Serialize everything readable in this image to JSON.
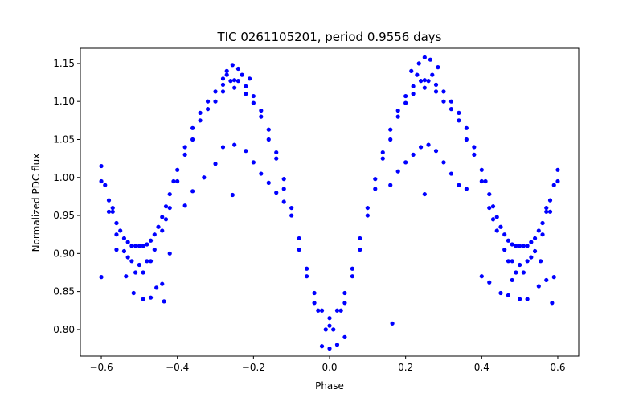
{
  "chart_data": {
    "type": "scatter",
    "title": "TIC 0261105201, period 0.9556 days",
    "xlabel": "Phase",
    "ylabel": "Normalized PDC flux",
    "xlim": [
      -0.655,
      0.655
    ],
    "ylim": [
      0.765,
      1.17
    ],
    "xticks": [
      "−0.6",
      "−0.4",
      "−0.2",
      "0.0",
      "0.2",
      "0.4",
      "0.6"
    ],
    "yticks": [
      "0.80",
      "0.85",
      "0.90",
      "0.95",
      "1.00",
      "1.05",
      "1.10",
      "1.15"
    ],
    "grid": false,
    "marker_color": "#0000ff",
    "series": [
      {
        "name": "",
        "points": [
          [
            -0.6,
            1.015
          ],
          [
            -0.59,
            0.99
          ],
          [
            -0.58,
            0.97
          ],
          [
            -0.57,
            0.955
          ],
          [
            -0.56,
            0.94
          ],
          [
            -0.55,
            0.93
          ],
          [
            -0.54,
            0.92
          ],
          [
            -0.53,
            0.915
          ],
          [
            -0.52,
            0.91
          ],
          [
            -0.51,
            0.91
          ],
          [
            -0.5,
            0.91
          ],
          [
            -0.49,
            0.91
          ],
          [
            -0.48,
            0.912
          ],
          [
            -0.47,
            0.917
          ],
          [
            -0.46,
            0.925
          ],
          [
            -0.45,
            0.935
          ],
          [
            -0.44,
            0.948
          ],
          [
            -0.43,
            0.962
          ],
          [
            -0.42,
            0.978
          ],
          [
            -0.41,
            0.995
          ],
          [
            -0.4,
            1.01
          ],
          [
            -0.38,
            1.04
          ],
          [
            -0.36,
            1.065
          ],
          [
            -0.34,
            1.085
          ],
          [
            -0.32,
            1.1
          ],
          [
            -0.3,
            1.113
          ],
          [
            -0.28,
            1.122
          ],
          [
            -0.26,
            1.127
          ],
          [
            -0.25,
            1.128
          ],
          [
            -0.24,
            1.127
          ],
          [
            -0.22,
            1.12
          ],
          [
            -0.2,
            1.107
          ],
          [
            -0.18,
            1.088
          ],
          [
            -0.16,
            1.063
          ],
          [
            -0.14,
            1.033
          ],
          [
            -0.12,
            0.998
          ],
          [
            -0.1,
            0.96
          ],
          [
            -0.08,
            0.92
          ],
          [
            -0.06,
            0.88
          ],
          [
            -0.04,
            0.848
          ],
          [
            -0.02,
            0.825
          ],
          [
            0.0,
            0.815
          ],
          [
            0.02,
            0.825
          ],
          [
            0.04,
            0.848
          ],
          [
            0.06,
            0.88
          ],
          [
            0.08,
            0.92
          ],
          [
            0.1,
            0.96
          ],
          [
            0.12,
            0.998
          ],
          [
            0.14,
            1.033
          ],
          [
            0.16,
            1.063
          ],
          [
            0.18,
            1.088
          ],
          [
            0.2,
            1.107
          ],
          [
            0.22,
            1.12
          ],
          [
            0.24,
            1.127
          ],
          [
            0.25,
            1.128
          ],
          [
            0.26,
            1.127
          ],
          [
            0.28,
            1.122
          ],
          [
            0.3,
            1.113
          ],
          [
            0.32,
            1.1
          ],
          [
            0.34,
            1.085
          ],
          [
            0.36,
            1.065
          ],
          [
            0.38,
            1.04
          ],
          [
            0.4,
            1.01
          ],
          [
            0.41,
            0.995
          ],
          [
            0.42,
            0.978
          ],
          [
            0.43,
            0.962
          ],
          [
            0.44,
            0.948
          ],
          [
            0.45,
            0.935
          ],
          [
            0.46,
            0.925
          ],
          [
            0.47,
            0.917
          ],
          [
            0.48,
            0.912
          ],
          [
            0.49,
            0.91
          ],
          [
            0.5,
            0.91
          ],
          [
            0.51,
            0.91
          ],
          [
            0.52,
            0.91
          ],
          [
            0.53,
            0.915
          ],
          [
            0.54,
            0.92
          ],
          [
            0.55,
            0.93
          ],
          [
            0.56,
            0.94
          ],
          [
            0.57,
            0.955
          ],
          [
            0.58,
            0.97
          ],
          [
            0.59,
            0.99
          ],
          [
            0.6,
            1.01
          ],
          [
            -0.6,
            0.995
          ],
          [
            -0.58,
            0.955
          ],
          [
            -0.56,
            0.925
          ],
          [
            -0.54,
            0.903
          ],
          [
            -0.52,
            0.89
          ],
          [
            -0.5,
            0.885
          ],
          [
            -0.48,
            0.89
          ],
          [
            -0.46,
            0.905
          ],
          [
            -0.44,
            0.93
          ],
          [
            -0.42,
            0.96
          ],
          [
            -0.4,
            0.995
          ],
          [
            -0.36,
            1.05
          ],
          [
            -0.32,
            1.09
          ],
          [
            -0.28,
            1.113
          ],
          [
            -0.25,
            1.118
          ],
          [
            -0.22,
            1.11
          ],
          [
            -0.18,
            1.08
          ],
          [
            -0.14,
            1.025
          ],
          [
            -0.1,
            0.95
          ],
          [
            -0.06,
            0.87
          ],
          [
            -0.03,
            0.825
          ],
          [
            0.0,
            0.805
          ],
          [
            0.03,
            0.825
          ],
          [
            0.06,
            0.87
          ],
          [
            0.1,
            0.95
          ],
          [
            0.14,
            1.025
          ],
          [
            0.18,
            1.08
          ],
          [
            0.22,
            1.11
          ],
          [
            0.25,
            1.118
          ],
          [
            0.28,
            1.113
          ],
          [
            0.32,
            1.09
          ],
          [
            0.36,
            1.05
          ],
          [
            0.4,
            0.995
          ],
          [
            0.42,
            0.96
          ],
          [
            0.44,
            0.93
          ],
          [
            0.46,
            0.905
          ],
          [
            0.48,
            0.89
          ],
          [
            0.5,
            0.885
          ],
          [
            0.52,
            0.89
          ],
          [
            0.54,
            0.903
          ],
          [
            0.56,
            0.925
          ],
          [
            0.58,
            0.955
          ],
          [
            0.6,
            0.995
          ],
          [
            -0.57,
            0.96
          ],
          [
            -0.53,
            0.895
          ],
          [
            -0.51,
            0.875
          ],
          [
            -0.49,
            0.875
          ],
          [
            -0.47,
            0.89
          ],
          [
            -0.43,
            0.945
          ],
          [
            -0.38,
            1.03
          ],
          [
            -0.34,
            1.075
          ],
          [
            -0.3,
            1.1
          ],
          [
            -0.27,
            1.135
          ],
          [
            -0.23,
            1.135
          ],
          [
            -0.2,
            1.098
          ],
          [
            -0.16,
            1.05
          ],
          [
            -0.12,
            0.985
          ],
          [
            -0.08,
            0.905
          ],
          [
            -0.04,
            0.835
          ],
          [
            -0.01,
            0.8
          ],
          [
            0.01,
            0.8
          ],
          [
            0.04,
            0.835
          ],
          [
            0.08,
            0.905
          ],
          [
            0.12,
            0.985
          ],
          [
            0.16,
            1.05
          ],
          [
            0.2,
            1.098
          ],
          [
            0.23,
            1.135
          ],
          [
            0.27,
            1.135
          ],
          [
            0.3,
            1.1
          ],
          [
            0.34,
            1.075
          ],
          [
            0.38,
            1.03
          ],
          [
            0.43,
            0.945
          ],
          [
            0.47,
            0.89
          ],
          [
            0.49,
            0.875
          ],
          [
            0.51,
            0.875
          ],
          [
            0.53,
            0.895
          ],
          [
            0.57,
            0.96
          ],
          [
            -0.255,
            1.148
          ],
          [
            -0.24,
            1.143
          ],
          [
            -0.27,
            1.14
          ],
          [
            0.25,
            1.158
          ],
          [
            0.265,
            1.155
          ],
          [
            0.235,
            1.15
          ],
          [
            0.215,
            1.14
          ],
          [
            0.285,
            1.145
          ],
          [
            -0.28,
            1.13
          ],
          [
            -0.21,
            1.13
          ],
          [
            -0.6,
            0.869
          ],
          [
            -0.56,
            0.905
          ],
          [
            -0.535,
            0.87
          ],
          [
            -0.515,
            0.848
          ],
          [
            -0.49,
            0.84
          ],
          [
            -0.47,
            0.842
          ],
          [
            -0.455,
            0.855
          ],
          [
            -0.435,
            0.837
          ],
          [
            -0.44,
            0.86
          ],
          [
            -0.42,
            0.9
          ],
          [
            -0.38,
            0.963
          ],
          [
            -0.36,
            0.982
          ],
          [
            -0.33,
            1.0
          ],
          [
            -0.3,
            1.018
          ],
          [
            -0.28,
            1.04
          ],
          [
            -0.25,
            1.043
          ],
          [
            -0.22,
            1.035
          ],
          [
            -0.2,
            1.02
          ],
          [
            -0.18,
            1.005
          ],
          [
            -0.16,
            0.993
          ],
          [
            -0.14,
            0.98
          ],
          [
            -0.12,
            0.968
          ],
          [
            -0.255,
            0.977
          ],
          [
            0.16,
            0.99
          ],
          [
            0.18,
            1.008
          ],
          [
            0.2,
            1.02
          ],
          [
            0.22,
            1.03
          ],
          [
            0.24,
            1.04
          ],
          [
            0.26,
            1.043
          ],
          [
            0.28,
            1.035
          ],
          [
            0.3,
            1.02
          ],
          [
            0.32,
            1.005
          ],
          [
            0.34,
            0.99
          ],
          [
            0.36,
            0.985
          ],
          [
            0.25,
            0.978
          ],
          [
            0.165,
            0.808
          ],
          [
            -0.02,
            0.778
          ],
          [
            0.0,
            0.775
          ],
          [
            0.02,
            0.78
          ],
          [
            0.04,
            0.79
          ],
          [
            0.4,
            0.87
          ],
          [
            0.42,
            0.862
          ],
          [
            0.45,
            0.848
          ],
          [
            0.47,
            0.845
          ],
          [
            0.5,
            0.84
          ],
          [
            0.52,
            0.84
          ],
          [
            0.55,
            0.857
          ],
          [
            0.57,
            0.865
          ],
          [
            0.59,
            0.869
          ],
          [
            0.585,
            0.835
          ],
          [
            0.48,
            0.865
          ],
          [
            0.555,
            0.89
          ]
        ]
      }
    ]
  }
}
